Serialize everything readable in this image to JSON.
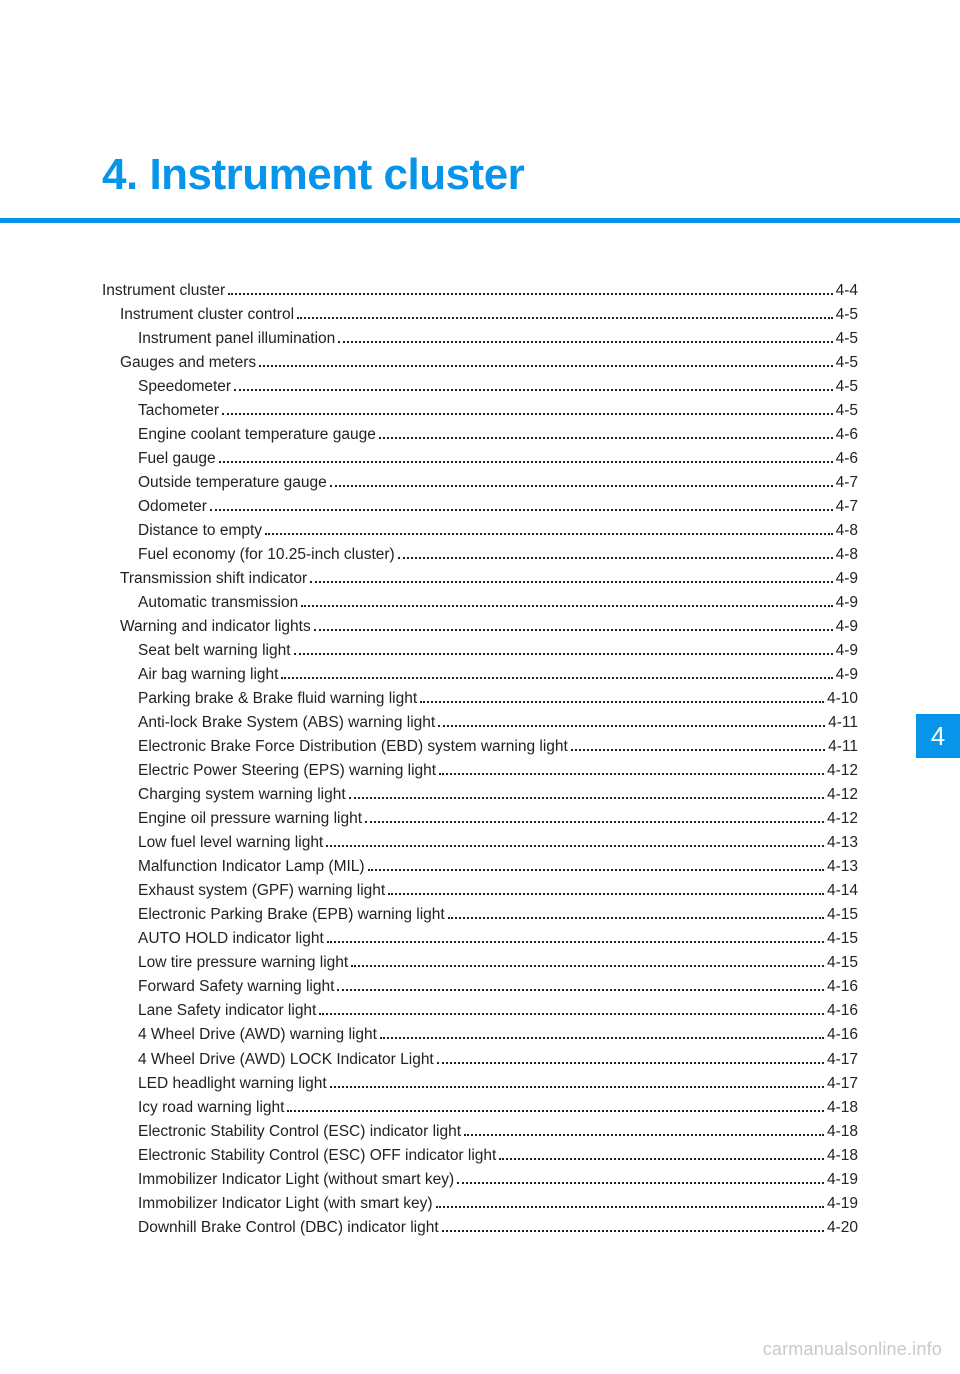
{
  "colors": {
    "accent": "#0795eb",
    "text": "#222222",
    "watermark": "#c9c9c9",
    "background": "#ffffff"
  },
  "chapter": {
    "number": "4.",
    "title": "Instrument cluster",
    "tab_label": "4"
  },
  "watermark": "carmanualsonline.info",
  "toc": [
    {
      "level": 0,
      "label": "Instrument cluster",
      "page": "4-4"
    },
    {
      "level": 1,
      "label": "Instrument cluster control",
      "page": "4-5"
    },
    {
      "level": 2,
      "label": "Instrument panel illumination",
      "page": "4-5"
    },
    {
      "level": 1,
      "label": "Gauges and meters",
      "page": "4-5"
    },
    {
      "level": 2,
      "label": "Speedometer",
      "page": "4-5"
    },
    {
      "level": 2,
      "label": "Tachometer",
      "page": "4-5"
    },
    {
      "level": 2,
      "label": "Engine coolant temperature gauge",
      "page": "4-6"
    },
    {
      "level": 2,
      "label": "Fuel gauge",
      "page": "4-6"
    },
    {
      "level": 2,
      "label": "Outside temperature gauge",
      "page": "4-7"
    },
    {
      "level": 2,
      "label": "Odometer",
      "page": "4-7"
    },
    {
      "level": 2,
      "label": "Distance to empty",
      "page": "4-8"
    },
    {
      "level": 2,
      "label": "Fuel economy (for 10.25-inch cluster)",
      "page": "4-8"
    },
    {
      "level": 1,
      "label": "Transmission shift indicator",
      "page": "4-9"
    },
    {
      "level": 2,
      "label": "Automatic transmission",
      "page": "4-9"
    },
    {
      "level": 1,
      "label": "Warning and indicator lights",
      "page": "4-9"
    },
    {
      "level": 2,
      "label": "Seat belt warning light",
      "page": "4-9"
    },
    {
      "level": 2,
      "label": "Air bag warning light",
      "page": "4-9"
    },
    {
      "level": 2,
      "label": "Parking brake & Brake fluid warning light",
      "page": "4-10"
    },
    {
      "level": 2,
      "label": "Anti-lock Brake System (ABS) warning light",
      "page": "4-11"
    },
    {
      "level": 2,
      "label": "Electronic Brake Force Distribution (EBD) system warning light",
      "page": "4-11"
    },
    {
      "level": 2,
      "label": "Electric Power Steering (EPS) warning light",
      "page": "4-12"
    },
    {
      "level": 2,
      "label": "Charging system warning light",
      "page": "4-12"
    },
    {
      "level": 2,
      "label": "Engine oil pressure warning light",
      "page": "4-12"
    },
    {
      "level": 2,
      "label": "Low fuel level warning light",
      "page": "4-13"
    },
    {
      "level": 2,
      "label": "Malfunction Indicator Lamp (MIL)",
      "page": "4-13"
    },
    {
      "level": 2,
      "label": "Exhaust system (GPF) warning light",
      "page": "4-14"
    },
    {
      "level": 2,
      "label": "Electronic Parking Brake (EPB) warning light",
      "page": "4-15"
    },
    {
      "level": 2,
      "label": "AUTO HOLD indicator light",
      "page": "4-15"
    },
    {
      "level": 2,
      "label": "Low tire pressure warning light",
      "page": "4-15"
    },
    {
      "level": 2,
      "label": "Forward Safety warning light",
      "page": "4-16"
    },
    {
      "level": 2,
      "label": "Lane Safety indicator light",
      "page": "4-16"
    },
    {
      "level": 2,
      "label": "4 Wheel Drive (AWD) warning light",
      "page": "4-16"
    },
    {
      "level": 2,
      "label": "4 Wheel Drive (AWD) LOCK Indicator Light",
      "page": "4-17"
    },
    {
      "level": 2,
      "label": "LED headlight warning light",
      "page": "4-17"
    },
    {
      "level": 2,
      "label": "Icy road warning light",
      "page": "4-18"
    },
    {
      "level": 2,
      "label": "Electronic Stability Control (ESC) indicator light",
      "page": "4-18"
    },
    {
      "level": 2,
      "label": "Electronic Stability Control (ESC) OFF indicator light",
      "page": "4-18"
    },
    {
      "level": 2,
      "label": "Immobilizer Indicator Light (without smart key)",
      "page": "4-19"
    },
    {
      "level": 2,
      "label": "Immobilizer Indicator Light (with smart key)",
      "page": "4-19"
    },
    {
      "level": 2,
      "label": "Downhill Brake Control (DBC) indicator light",
      "page": "4-20"
    }
  ]
}
